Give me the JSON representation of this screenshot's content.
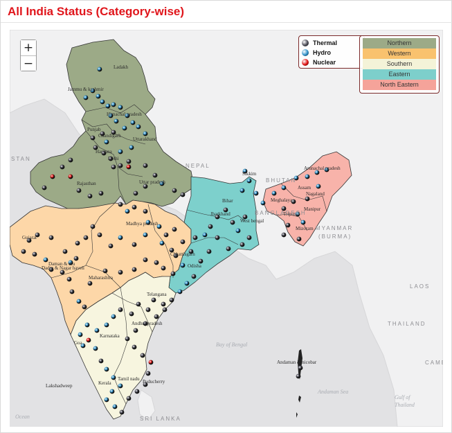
{
  "title": "All India Status (Category-wise)",
  "zoom": {
    "in_label": "+",
    "out_label": "−"
  },
  "legend_types": [
    {
      "label": "Thermal",
      "color": "#4a4a55"
    },
    {
      "label": "Hydro",
      "color": "#2e8fc7"
    },
    {
      "label": "Nuclear",
      "color": "#e01010"
    }
  ],
  "legend_regions": [
    {
      "label": "Northern",
      "color": "#9caa87"
    },
    {
      "label": "Western",
      "color": "#f9c26e"
    },
    {
      "label": "Southern",
      "color": "#f4f3d8"
    },
    {
      "label": "Eastern",
      "color": "#7dcfcb"
    },
    {
      "label": "North Eastern",
      "color": "#f5a39a"
    }
  ],
  "region_colors": {
    "northern": "#9caa87",
    "western": "#fdd7a8",
    "southern": "#f7f5df",
    "eastern": "#7dd0cc",
    "north_eastern": "#f8b3aa",
    "sea": "#e2e2e4"
  },
  "place_labels": [
    "Ladakh",
    "Jammu & kashmir",
    "Himachal pradesh",
    "Punjab",
    "Chandigarh",
    "Uttarakhand",
    "Haryana",
    "Delhi",
    "Rajasthan",
    "Uttar pradesh",
    "Sikkim",
    "Bihar",
    "Arunachal pradesh",
    "Assam",
    "Meghalaya",
    "Nagaland",
    "Manipur",
    "Tripura",
    "Mizoram",
    "Jharkhand",
    "West bengal",
    "Madhya pradesh",
    "Gujarat",
    "Chhattisgarh",
    "Odisha",
    "Dadra & Nagar haveli",
    "Daman & diu",
    "Maharashtra",
    "Telangana",
    "Andhra pradesh",
    "Karnataka",
    "Goa",
    "Kerala",
    "Tamil nadu",
    "Puducherry",
    "Lakshadweep",
    "Andaman & nicobar"
  ],
  "country_labels": [
    "STAN",
    "NEPAL",
    "BHUTAN",
    "BANGLADESH",
    "MYANMAR",
    "(BURMA)",
    "LAOS",
    "THAILAND",
    "CAMB",
    "SRI LANKA"
  ],
  "water_labels": [
    "Bay of Bengal",
    "Andaman Sea",
    "Gulf of",
    "Thailand",
    "Ocean"
  ]
}
